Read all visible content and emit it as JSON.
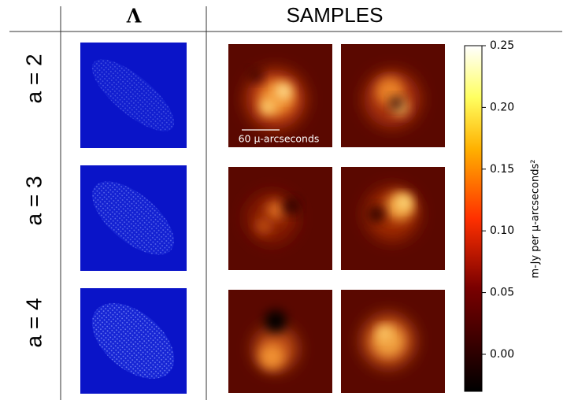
{
  "header": {
    "lambda": "Λ",
    "samples": "SAMPLES"
  },
  "rows": [
    {
      "label": "a = 2"
    },
    {
      "label": "a = 3"
    },
    {
      "label": "a = 4"
    }
  ],
  "scale_bar": "60 μ-arcseconds",
  "colorbar": {
    "label": "m-Jy per μ-arcseconds²",
    "lim": [
      -0.03,
      0.25
    ],
    "ticks": [
      {
        "value": 0,
        "label": "0.00"
      },
      {
        "value": 0.05,
        "label": "0.05"
      },
      {
        "value": 0.1,
        "label": "0.10"
      },
      {
        "value": 0.15,
        "label": "0.15"
      },
      {
        "value": 0.2,
        "label": "0.20"
      },
      {
        "value": 0.25,
        "label": "0.25"
      }
    ]
  }
}
